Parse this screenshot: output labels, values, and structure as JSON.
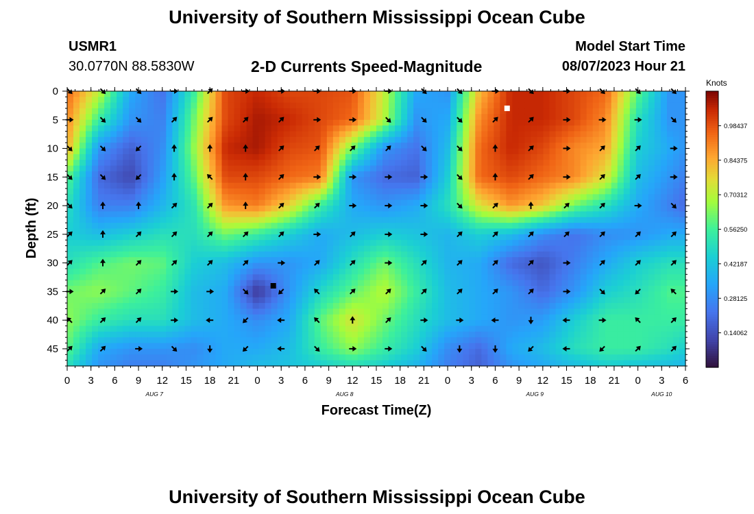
{
  "header": {
    "title": "University of Southern Mississippi Ocean Cube",
    "station_id": "USMR1",
    "station_coords": "30.0770N  88.5830W",
    "plot_title": "2-D Currents Speed-Magnitude",
    "model_start_label": "Model Start Time",
    "model_start_value": "08/07/2023 Hour 21"
  },
  "footer": {
    "title": "University of Southern Mississippi Ocean Cube"
  },
  "chart_data": {
    "type": "heatmap",
    "title": "2-D Currents Speed-Magnitude",
    "xlabel": "Forecast Time(Z)",
    "ylabel": "Depth (ft)",
    "x_ticks": [
      "0",
      "3",
      "6",
      "9",
      "12",
      "15",
      "18",
      "21",
      "0",
      "3",
      "6",
      "9",
      "12",
      "15",
      "18",
      "21",
      "0",
      "3",
      "6",
      "9",
      "12",
      "15",
      "18",
      "21",
      "0",
      "3",
      "6"
    ],
    "x_tick_hours": [
      0,
      3,
      6,
      9,
      12,
      15,
      18,
      21,
      24,
      27,
      30,
      33,
      36,
      39,
      42,
      45,
      48,
      51,
      54,
      57,
      60,
      63,
      66,
      69,
      72,
      75,
      78
    ],
    "date_labels": [
      {
        "label": "AUG 7",
        "hour": 11
      },
      {
        "label": "AUG 8",
        "hour": 35
      },
      {
        "label": "AUG 9",
        "hour": 59
      },
      {
        "label": "AUG 10",
        "hour": 75
      }
    ],
    "y_ticks": [
      0,
      5,
      10,
      15,
      20,
      25,
      30,
      35,
      40,
      45
    ],
    "xlim": [
      0,
      78
    ],
    "ylim": [
      0,
      48
    ],
    "colorbar": {
      "label": "Knots",
      "min": 0.0,
      "max": 1.125,
      "ticks": [
        "0.98437",
        "0.84375",
        "0.70312",
        "0.56250",
        "0.42187",
        "0.28125",
        "0.14062"
      ],
      "tick_values": [
        0.98437,
        0.84375,
        0.70312,
        0.5625,
        0.42187,
        0.28125,
        0.14062
      ]
    },
    "speed_grid": {
      "hours": [
        0,
        4,
        8,
        12,
        16,
        20,
        24,
        28,
        32,
        36,
        40,
        44,
        48,
        52,
        56,
        60,
        64,
        68,
        72,
        76,
        78
      ],
      "depths": [
        0,
        5,
        10,
        15,
        20,
        25,
        30,
        35,
        40,
        45,
        48
      ],
      "values": [
        [
          0.95,
          0.72,
          0.35,
          0.22,
          0.55,
          1.0,
          1.05,
          1.0,
          1.0,
          0.98,
          0.72,
          0.35,
          0.3,
          0.82,
          1.05,
          1.05,
          1.0,
          0.95,
          0.6,
          0.3,
          0.3
        ],
        [
          0.9,
          0.55,
          0.3,
          0.25,
          0.62,
          1.0,
          1.08,
          1.05,
          1.0,
          0.95,
          0.7,
          0.3,
          0.35,
          0.9,
          1.05,
          1.05,
          1.0,
          0.9,
          0.5,
          0.3,
          0.3
        ],
        [
          0.85,
          0.3,
          0.18,
          0.28,
          0.66,
          1.05,
          1.08,
          1.0,
          0.98,
          0.62,
          0.3,
          0.22,
          0.4,
          0.95,
          1.05,
          1.0,
          0.9,
          0.85,
          0.45,
          0.35,
          0.3
        ],
        [
          0.6,
          0.2,
          0.12,
          0.32,
          0.6,
          1.0,
          1.0,
          0.95,
          0.92,
          0.3,
          0.2,
          0.18,
          0.45,
          0.95,
          1.0,
          0.95,
          0.9,
          0.75,
          0.4,
          0.3,
          0.25
        ],
        [
          0.5,
          0.25,
          0.25,
          0.38,
          0.52,
          0.88,
          0.92,
          0.78,
          0.55,
          0.35,
          0.3,
          0.35,
          0.5,
          0.75,
          0.88,
          0.8,
          0.62,
          0.5,
          0.35,
          0.25,
          0.2
        ],
        [
          0.45,
          0.4,
          0.45,
          0.5,
          0.5,
          0.62,
          0.55,
          0.45,
          0.35,
          0.4,
          0.45,
          0.42,
          0.38,
          0.45,
          0.4,
          0.28,
          0.22,
          0.28,
          0.3,
          0.35,
          0.35
        ],
        [
          0.5,
          0.58,
          0.62,
          0.6,
          0.45,
          0.4,
          0.3,
          0.3,
          0.35,
          0.5,
          0.62,
          0.5,
          0.38,
          0.35,
          0.2,
          0.15,
          0.25,
          0.35,
          0.45,
          0.5,
          0.5
        ],
        [
          0.62,
          0.65,
          0.6,
          0.55,
          0.4,
          0.35,
          0.08,
          0.3,
          0.48,
          0.6,
          0.7,
          0.55,
          0.4,
          0.35,
          0.3,
          0.2,
          0.3,
          0.45,
          0.5,
          0.58,
          0.58
        ],
        [
          0.65,
          0.55,
          0.5,
          0.5,
          0.4,
          0.35,
          0.28,
          0.35,
          0.6,
          0.75,
          0.62,
          0.5,
          0.4,
          0.35,
          0.3,
          0.32,
          0.45,
          0.55,
          0.55,
          0.55,
          0.55
        ],
        [
          0.6,
          0.35,
          0.3,
          0.3,
          0.28,
          0.35,
          0.35,
          0.4,
          0.55,
          0.65,
          0.55,
          0.45,
          0.28,
          0.2,
          0.35,
          0.4,
          0.5,
          0.55,
          0.55,
          0.5,
          0.45
        ],
        [
          0.5,
          0.3,
          0.25,
          0.25,
          0.3,
          0.35,
          0.4,
          0.42,
          0.45,
          0.5,
          0.45,
          0.38,
          0.25,
          0.18,
          0.3,
          0.35,
          0.4,
          0.45,
          0.42,
          0.4,
          0.38
        ]
      ]
    },
    "arrow_hours": [
      0.3,
      4.5,
      9,
      13.5,
      18,
      22.5,
      27,
      31.5,
      36,
      40.5,
      45,
      49.5,
      54,
      58.5,
      63,
      67.5,
      72,
      76.5
    ],
    "arrow_depths": [
      0,
      5,
      10,
      15,
      20,
      25,
      30,
      35,
      40,
      45
    ],
    "arrow_directions": [
      [
        135,
        135,
        135,
        90,
        45,
        90,
        90,
        90,
        90,
        90,
        135,
        135,
        90,
        135,
        90,
        135,
        135,
        135
      ],
      [
        90,
        135,
        135,
        45,
        45,
        45,
        45,
        90,
        90,
        135,
        135,
        135,
        45,
        45,
        90,
        90,
        90,
        135
      ],
      [
        135,
        135,
        225,
        0,
        0,
        0,
        45,
        45,
        45,
        45,
        135,
        135,
        0,
        45,
        90,
        45,
        45,
        90
      ],
      [
        135,
        135,
        225,
        0,
        315,
        0,
        45,
        90,
        90,
        90,
        90,
        135,
        0,
        45,
        90,
        45,
        45,
        90
      ],
      [
        135,
        0,
        0,
        45,
        45,
        0,
        45,
        45,
        90,
        90,
        90,
        135,
        45,
        0,
        45,
        45,
        90,
        135
      ],
      [
        45,
        0,
        45,
        45,
        45,
        45,
        45,
        90,
        45,
        90,
        90,
        45,
        45,
        45,
        45,
        45,
        45,
        45
      ],
      [
        45,
        0,
        45,
        45,
        45,
        45,
        90,
        45,
        45,
        90,
        45,
        45,
        45,
        45,
        90,
        45,
        45,
        45
      ],
      [
        90,
        45,
        45,
        90,
        90,
        135,
        225,
        315,
        45,
        45,
        45,
        45,
        45,
        45,
        90,
        135,
        225,
        315
      ],
      [
        315,
        45,
        45,
        90,
        270,
        225,
        270,
        315,
        0,
        45,
        90,
        90,
        270,
        180,
        270,
        90,
        315,
        45
      ],
      [
        45,
        45,
        90,
        135,
        180,
        225,
        270,
        135,
        90,
        90,
        135,
        180,
        180,
        225,
        270,
        225,
        45,
        45
      ]
    ],
    "markers": [
      {
        "hour": 55.5,
        "depth": 3,
        "color": "white"
      },
      {
        "hour": 26,
        "depth": 34,
        "color": "black"
      }
    ]
  }
}
